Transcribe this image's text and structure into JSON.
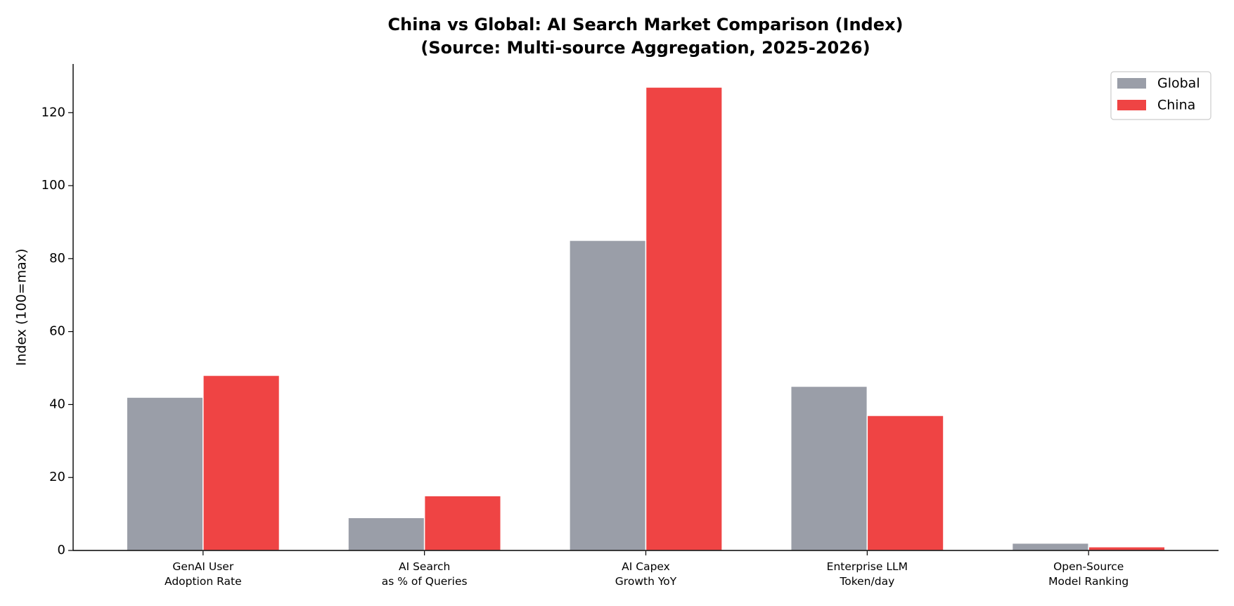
{
  "chart_data": {
    "type": "bar",
    "title": [
      "China vs Global: AI Search Market Comparison (Index)",
      "(Source: Multi-source Aggregation, 2025-2026)"
    ],
    "y_label": "Index (100=max)",
    "categories": [
      "GenAI User\nAdoption Rate",
      "AI Search\nas % of Queries",
      "AI Capex\nGrowth YoY",
      "Enterprise LLM\nToken/day",
      "Open-Source\nModel Ranking"
    ],
    "series": [
      {
        "name": "Global",
        "color": "#9a9ea8",
        "values": [
          42,
          9,
          85,
          45,
          2
        ]
      },
      {
        "name": "China",
        "color": "#ef4444",
        "values": [
          48,
          15,
          127,
          37,
          1
        ]
      }
    ],
    "ylim": [
      0,
      133.35
    ],
    "yticks": [
      0,
      20,
      40,
      60,
      80,
      100,
      120
    ],
    "legend": "upper right"
  }
}
